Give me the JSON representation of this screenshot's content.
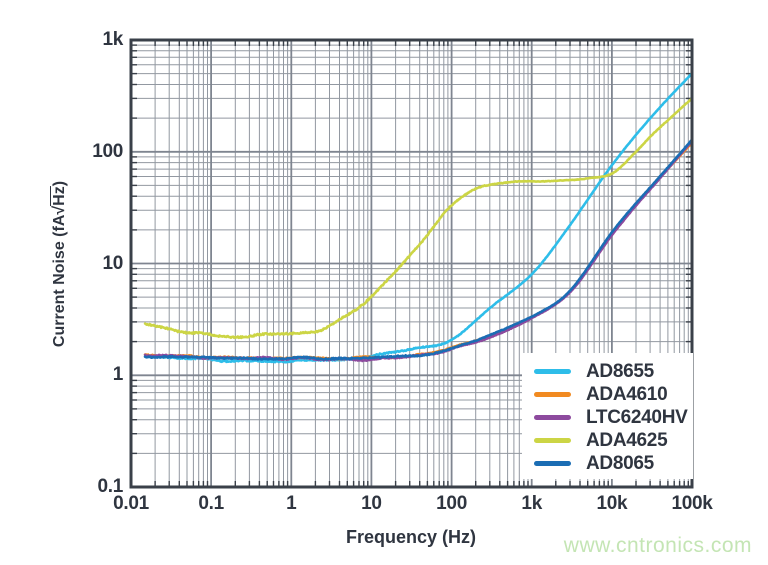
{
  "chart_data": {
    "type": "line",
    "title": "",
    "xlabel": "Frequency (Hz)",
    "ylabel": "Current Noise (fA√Hz)",
    "ylabel_parts": {
      "prefix": "Current Noise (fA",
      "radical": "√",
      "overline": "Hz",
      "suffix": ")"
    },
    "x_scale": "log",
    "y_scale": "log",
    "xlim": [
      0.01,
      100000
    ],
    "ylim": [
      0.1,
      1000
    ],
    "x_data_start": 0.015,
    "grid": true,
    "legend_position": "lower-right",
    "x_ticks": [
      {
        "v": 0.01,
        "label": "0.01"
      },
      {
        "v": 0.1,
        "label": "0.1"
      },
      {
        "v": 1,
        "label": "1"
      },
      {
        "v": 10,
        "label": "10"
      },
      {
        "v": 100,
        "label": "100"
      },
      {
        "v": 1000,
        "label": "1k"
      },
      {
        "v": 10000,
        "label": "10k"
      },
      {
        "v": 100000,
        "label": "100k"
      }
    ],
    "y_ticks": [
      {
        "v": 1000,
        "label": "1k"
      },
      {
        "v": 100,
        "label": "100"
      },
      {
        "v": 10,
        "label": "10"
      },
      {
        "v": 1,
        "label": "1"
      },
      {
        "v": 0.1,
        "label": "0.1"
      }
    ],
    "series": [
      {
        "name": "AD8655",
        "color": "#2ebde9",
        "points": [
          [
            0.015,
            1.45
          ],
          [
            0.05,
            1.4
          ],
          [
            0.2,
            1.36
          ],
          [
            1,
            1.35
          ],
          [
            5,
            1.38
          ],
          [
            10,
            1.48
          ],
          [
            30,
            1.7
          ],
          [
            100,
            2.1
          ],
          [
            300,
            4.0
          ],
          [
            1000,
            8
          ],
          [
            3000,
            22
          ],
          [
            10000,
            76
          ],
          [
            30000,
            200
          ],
          [
            100000,
            500
          ]
        ]
      },
      {
        "name": "ADA4610",
        "color": "#f18a21",
        "points": [
          [
            0.015,
            1.48
          ],
          [
            0.1,
            1.46
          ],
          [
            1,
            1.44
          ],
          [
            10,
            1.43
          ],
          [
            50,
            1.55
          ],
          [
            100,
            1.75
          ],
          [
            300,
            2.25
          ],
          [
            1000,
            3.3
          ],
          [
            3000,
            5.6
          ],
          [
            10000,
            18.5
          ],
          [
            30000,
            47
          ],
          [
            100000,
            120
          ]
        ]
      },
      {
        "name": "LTC6240HV",
        "color": "#8d4a9e",
        "points": [
          [
            0.015,
            1.52
          ],
          [
            0.1,
            1.45
          ],
          [
            1,
            1.41
          ],
          [
            10,
            1.4
          ],
          [
            50,
            1.52
          ],
          [
            100,
            1.72
          ],
          [
            300,
            2.2
          ],
          [
            1000,
            3.25
          ],
          [
            3000,
            5.5
          ],
          [
            10000,
            18
          ],
          [
            30000,
            46
          ],
          [
            100000,
            124
          ]
        ]
      },
      {
        "name": "ADA4625",
        "color": "#ccd545",
        "points": [
          [
            0.015,
            2.9
          ],
          [
            0.03,
            2.6
          ],
          [
            0.07,
            2.4
          ],
          [
            0.15,
            2.25
          ],
          [
            0.4,
            2.28
          ],
          [
            1,
            2.35
          ],
          [
            2,
            2.5
          ],
          [
            3,
            2.8
          ],
          [
            5,
            3.4
          ],
          [
            10,
            5
          ],
          [
            20,
            8.5
          ],
          [
            50,
            18
          ],
          [
            100,
            33
          ],
          [
            200,
            47
          ],
          [
            300,
            51
          ],
          [
            500,
            53.5
          ],
          [
            1000,
            54.5
          ],
          [
            2000,
            55
          ],
          [
            5000,
            58
          ],
          [
            10000,
            64
          ],
          [
            20000,
            100
          ],
          [
            30000,
            135
          ],
          [
            50000,
            190
          ],
          [
            100000,
            300
          ]
        ]
      },
      {
        "name": "AD8065",
        "color": "#1b6db4",
        "points": [
          [
            0.015,
            1.46
          ],
          [
            0.1,
            1.44
          ],
          [
            1,
            1.43
          ],
          [
            10,
            1.42
          ],
          [
            50,
            1.56
          ],
          [
            100,
            1.76
          ],
          [
            300,
            2.3
          ],
          [
            1000,
            3.35
          ],
          [
            3000,
            5.7
          ],
          [
            10000,
            19
          ],
          [
            30000,
            48
          ],
          [
            100000,
            128
          ]
        ]
      }
    ]
  },
  "watermark": {
    "text": "www.cntronics.com",
    "color": "#c4e5b4"
  },
  "style": {
    "background": "#ffffff",
    "axis_color": "#3a4049",
    "label_color": "#2f3540",
    "grid_major_color": "#7f8590",
    "grid_minor_color": "#9298a1",
    "legend_bg": "#ffffff"
  }
}
